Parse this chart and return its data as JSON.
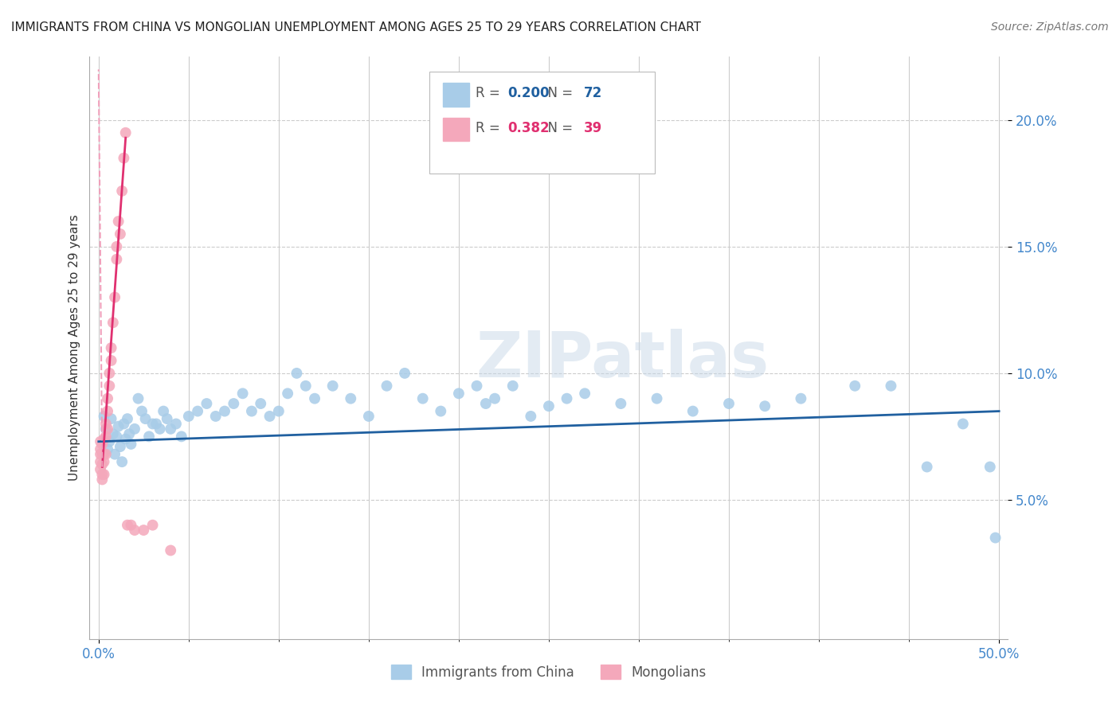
{
  "title": "IMMIGRANTS FROM CHINA VS MONGOLIAN UNEMPLOYMENT AMONG AGES 25 TO 29 YEARS CORRELATION CHART",
  "source": "Source: ZipAtlas.com",
  "ylabel": "Unemployment Among Ages 25 to 29 years",
  "xlim": [
    -0.005,
    0.505
  ],
  "ylim": [
    -0.005,
    0.225
  ],
  "xticks": [
    0.0,
    0.5
  ],
  "xticklabels": [
    "0.0%",
    "50.0%"
  ],
  "yticks": [
    0.05,
    0.1,
    0.15,
    0.2
  ],
  "yticklabels": [
    "5.0%",
    "10.0%",
    "15.0%",
    "20.0%"
  ],
  "legend_r_china": "0.200",
  "legend_n_china": "72",
  "legend_r_mongol": "0.382",
  "legend_n_mongol": "39",
  "china_color": "#a8cce8",
  "mongol_color": "#f4a8bb",
  "trend_china_color": "#2060a0",
  "trend_mongol_color": "#e03070",
  "trend_mongol_dash_color": "#f0a0bb",
  "watermark": "ZIPatlas",
  "background_color": "#ffffff",
  "china_x": [
    0.003,
    0.004,
    0.005,
    0.006,
    0.007,
    0.008,
    0.009,
    0.01,
    0.011,
    0.012,
    0.013,
    0.014,
    0.015,
    0.016,
    0.017,
    0.018,
    0.02,
    0.022,
    0.024,
    0.026,
    0.028,
    0.03,
    0.032,
    0.034,
    0.036,
    0.038,
    0.04,
    0.043,
    0.046,
    0.05,
    0.055,
    0.06,
    0.065,
    0.07,
    0.075,
    0.08,
    0.085,
    0.09,
    0.095,
    0.1,
    0.105,
    0.11,
    0.115,
    0.12,
    0.13,
    0.14,
    0.15,
    0.16,
    0.17,
    0.18,
    0.19,
    0.2,
    0.21,
    0.215,
    0.22,
    0.23,
    0.24,
    0.25,
    0.26,
    0.27,
    0.29,
    0.31,
    0.33,
    0.35,
    0.37,
    0.39,
    0.42,
    0.44,
    0.46,
    0.48,
    0.495,
    0.498
  ],
  "china_y": [
    0.083,
    0.078,
    0.07,
    0.073,
    0.082,
    0.076,
    0.068,
    0.075,
    0.079,
    0.071,
    0.065,
    0.08,
    0.074,
    0.082,
    0.076,
    0.072,
    0.078,
    0.09,
    0.085,
    0.082,
    0.075,
    0.08,
    0.08,
    0.078,
    0.085,
    0.082,
    0.078,
    0.08,
    0.075,
    0.083,
    0.085,
    0.088,
    0.083,
    0.085,
    0.088,
    0.092,
    0.085,
    0.088,
    0.083,
    0.085,
    0.092,
    0.1,
    0.095,
    0.09,
    0.095,
    0.09,
    0.083,
    0.095,
    0.1,
    0.09,
    0.085,
    0.092,
    0.095,
    0.088,
    0.09,
    0.095,
    0.083,
    0.087,
    0.09,
    0.092,
    0.088,
    0.09,
    0.085,
    0.088,
    0.087,
    0.09,
    0.095,
    0.095,
    0.063,
    0.08,
    0.063,
    0.035
  ],
  "mongol_x": [
    0.001,
    0.001,
    0.001,
    0.001,
    0.001,
    0.002,
    0.002,
    0.002,
    0.002,
    0.002,
    0.003,
    0.003,
    0.003,
    0.003,
    0.004,
    0.004,
    0.004,
    0.005,
    0.005,
    0.005,
    0.006,
    0.006,
    0.007,
    0.007,
    0.008,
    0.009,
    0.01,
    0.01,
    0.011,
    0.012,
    0.013,
    0.014,
    0.015,
    0.016,
    0.018,
    0.02,
    0.025,
    0.03,
    0.04
  ],
  "mongol_y": [
    0.07,
    0.068,
    0.073,
    0.065,
    0.062,
    0.072,
    0.068,
    0.064,
    0.06,
    0.058,
    0.074,
    0.068,
    0.065,
    0.06,
    0.08,
    0.075,
    0.068,
    0.09,
    0.085,
    0.078,
    0.1,
    0.095,
    0.11,
    0.105,
    0.12,
    0.13,
    0.15,
    0.145,
    0.16,
    0.155,
    0.172,
    0.185,
    0.195,
    0.04,
    0.04,
    0.038,
    0.038,
    0.04,
    0.03
  ],
  "trend_china_start_x": 0.0,
  "trend_china_end_x": 0.5,
  "trend_china_start_y": 0.073,
  "trend_china_end_y": 0.085,
  "trend_mongol_solid_start_x": 0.002,
  "trend_mongol_solid_start_y": 0.063,
  "trend_mongol_solid_end_x": 0.015,
  "trend_mongol_solid_end_y": 0.193,
  "trend_mongol_dash_start_x": 0.002,
  "trend_mongol_dash_start_y": 0.063,
  "trend_mongol_dash_end_x": 0.0,
  "trend_mongol_dash_end_y": 0.22
}
